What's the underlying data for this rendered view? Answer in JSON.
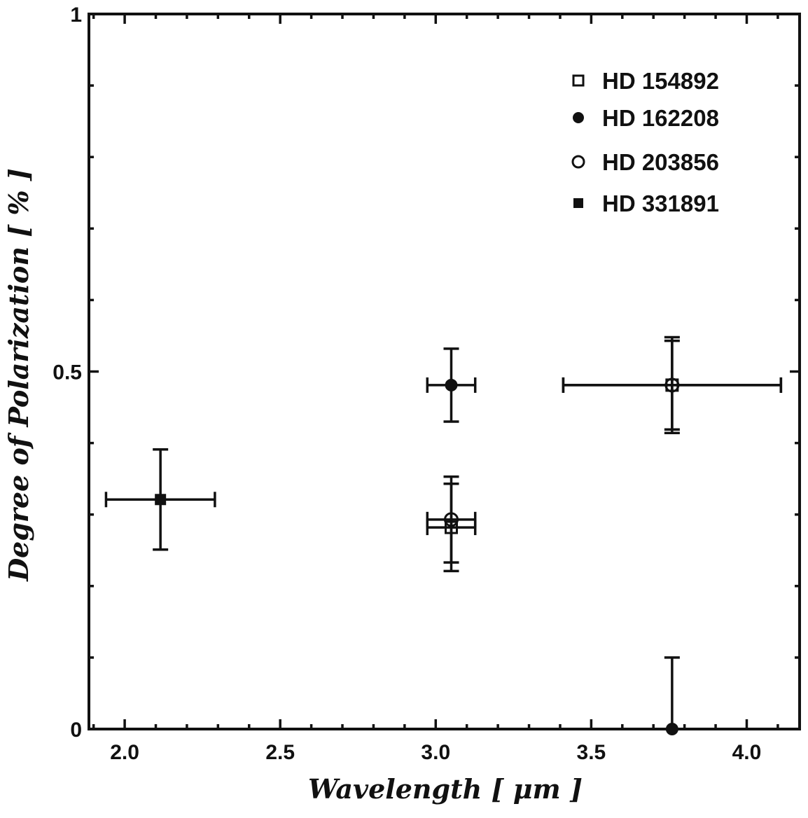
{
  "chart_data": {
    "type": "scatter",
    "title": "",
    "xlabel": "Wavelength [ μm ]",
    "ylabel": "Degree of Polarization [ % ]",
    "xlim": [
      1.885,
      4.17
    ],
    "ylim": [
      0,
      1
    ],
    "xticks": [
      2.0,
      2.5,
      3.0,
      3.5,
      4.0
    ],
    "xtick_labels": [
      "2.0",
      "2.5",
      "3.0",
      "3.5",
      "4.0"
    ],
    "yticks": [
      0,
      0.5,
      1
    ],
    "ytick_labels": [
      "0",
      "0.5",
      "1"
    ],
    "grid": false,
    "legend_position": "top-right",
    "series": [
      {
        "name": "HD 154892",
        "marker": "open-square",
        "points": [
          {
            "x": 3.05,
            "y": 0.282,
            "xerr": 0.077,
            "yerr": 0.061
          },
          {
            "x": 3.76,
            "y": 0.481,
            "xerr": 0.35,
            "yerr": 0.067
          }
        ]
      },
      {
        "name": "HD 162208",
        "marker": "filled-circle",
        "points": [
          {
            "x": 3.05,
            "y": 0.481,
            "xerr": 0.077,
            "yerr": 0.051
          },
          {
            "x": 3.76,
            "y": 0.0,
            "xerr": 0,
            "yerr": 0.1
          }
        ]
      },
      {
        "name": "HD 203856",
        "marker": "open-circle",
        "points": [
          {
            "x": 3.05,
            "y": 0.293,
            "xerr": 0.077,
            "yerr": 0.06
          },
          {
            "x": 3.76,
            "y": 0.481,
            "xerr": 0.35,
            "yerr": 0.062
          }
        ]
      },
      {
        "name": "HD 331891",
        "marker": "filled-square",
        "points": [
          {
            "x": 2.115,
            "y": 0.321,
            "xerr": 0.175,
            "yerr": 0.07
          }
        ]
      }
    ]
  }
}
